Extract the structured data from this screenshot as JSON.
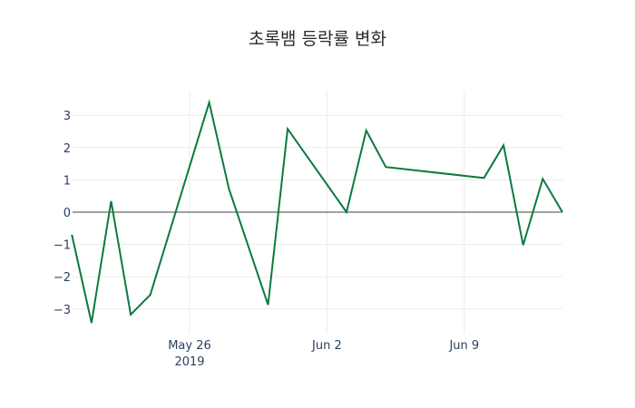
{
  "chart_data": {
    "type": "line",
    "title": "초록뱀 등락률 변화",
    "xlabel": "",
    "ylabel": "",
    "x": [
      "2019-05-20",
      "2019-05-21",
      "2019-05-22",
      "2019-05-23",
      "2019-05-24",
      "2019-05-27",
      "2019-05-28",
      "2019-05-30",
      "2019-05-31",
      "2019-06-03",
      "2019-06-04",
      "2019-06-05",
      "2019-06-10",
      "2019-06-11",
      "2019-06-12",
      "2019-06-13",
      "2019-06-14"
    ],
    "series": [
      {
        "name": "등락률",
        "color": "#0b7a3e",
        "values": [
          -0.7,
          -3.43,
          0.34,
          -3.17,
          -2.56,
          3.4,
          0.73,
          -2.87,
          2.58,
          0.0,
          2.53,
          1.4,
          1.06,
          2.07,
          -1.02,
          1.03,
          0.0
        ]
      }
    ],
    "yticks": [
      -3,
      -2,
      -1,
      0,
      1,
      2,
      3
    ],
    "ytick_labels": [
      "−3",
      "−2",
      "−1",
      "0",
      "1",
      "2",
      "3"
    ],
    "xticks": [
      {
        "date": "2019-05-26",
        "label": "May 26",
        "sublabel": "2019"
      },
      {
        "date": "2019-06-02",
        "label": "Jun 2",
        "sublabel": ""
      },
      {
        "date": "2019-06-09",
        "label": "Jun 9",
        "sublabel": ""
      }
    ],
    "ylim": [
      -3.77,
      3.83
    ],
    "xlim": [
      "2019-05-20",
      "2019-06-14"
    ],
    "grid": true,
    "zeroline": true,
    "legend": "none"
  }
}
